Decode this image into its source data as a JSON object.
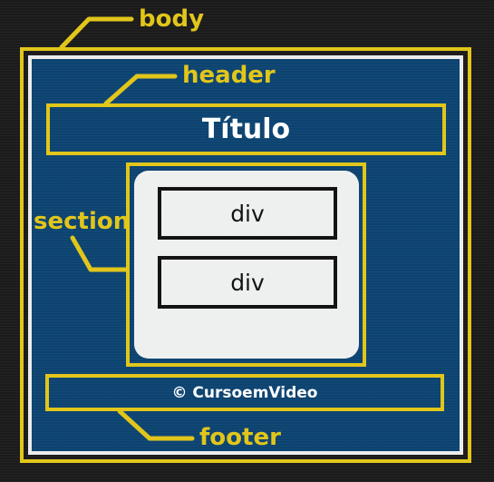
{
  "labels": {
    "body": "body",
    "header": "header",
    "section": "section",
    "footer": "footer"
  },
  "header": {
    "title": "Título"
  },
  "section": {
    "divs": [
      "div",
      "div"
    ]
  },
  "footer": {
    "text": "© CursoemVideo"
  },
  "colors": {
    "accent": "#e1c518",
    "content_bg": "#0c4370",
    "panel": "#eef0f0",
    "background": "#1b1b1b"
  }
}
